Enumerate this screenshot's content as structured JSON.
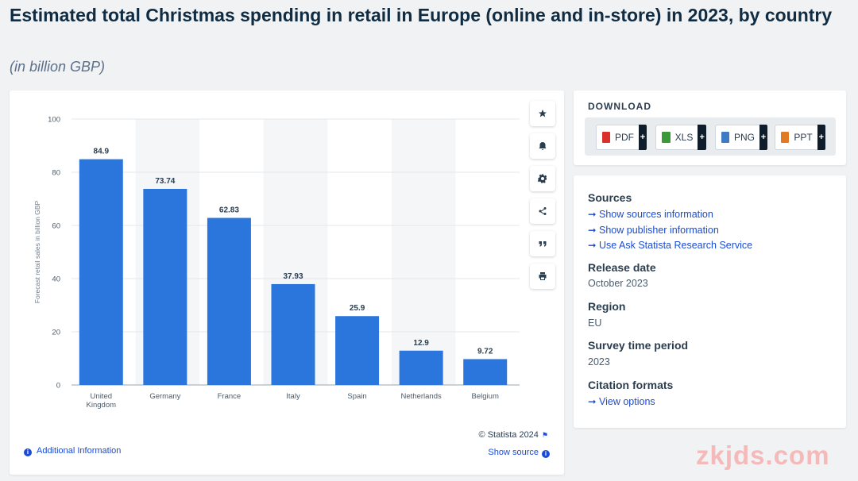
{
  "title": "Estimated total Christmas spending in retail in Europe (online and in-store) in 2023, by country",
  "subtitle": "(in billion GBP)",
  "chart_data": {
    "type": "bar",
    "categories": [
      "United Kingdom",
      "Germany",
      "France",
      "Italy",
      "Spain",
      "Netherlands",
      "Belgium"
    ],
    "category_lines": [
      [
        "United",
        "Kingdom"
      ],
      [
        "Germany"
      ],
      [
        "France"
      ],
      [
        "Italy"
      ],
      [
        "Spain"
      ],
      [
        "Netherlands"
      ],
      [
        "Belgium"
      ]
    ],
    "values": [
      84.9,
      73.74,
      62.83,
      37.93,
      25.9,
      12.9,
      9.72
    ],
    "value_labels": [
      "84.9",
      "73.74",
      "62.83",
      "37.93",
      "25.9",
      "12.9",
      "9.72"
    ],
    "ylabel": "Forecast retail sales in billion GBP",
    "xlabel": "",
    "ylim": [
      0,
      100
    ],
    "yticks": [
      "0",
      "20",
      "40",
      "60",
      "80",
      "100"
    ],
    "grid": true,
    "bar_color": "#2a76dd"
  },
  "chart_footer": {
    "copyright": "© Statista 2024",
    "show_source": "Show source",
    "additional_info": "Additional Information"
  },
  "tools": [
    "star-icon",
    "bell-icon",
    "gear-icon",
    "share-icon",
    "quote-icon",
    "print-icon"
  ],
  "download": {
    "title": "DOWNLOAD",
    "buttons": [
      {
        "label": "PDF",
        "plus": "+",
        "color": "#d9302c"
      },
      {
        "label": "XLS",
        "plus": "+",
        "color": "#3a9a3a"
      },
      {
        "label": "PNG",
        "plus": "+",
        "color": "#3f7bc4"
      },
      {
        "label": "PPT",
        "plus": "+",
        "color": "#e07a25"
      }
    ]
  },
  "info": {
    "sources_title": "Sources",
    "links": [
      "Show sources information",
      "Show publisher information",
      "Use Ask Statista Research Service"
    ],
    "release_title": "Release date",
    "release_value": "October 2023",
    "region_title": "Region",
    "region_value": "EU",
    "period_title": "Survey time period",
    "period_value": "2023",
    "citation_title": "Citation formats",
    "citation_link": "View options"
  },
  "watermark": "zkjds.com"
}
